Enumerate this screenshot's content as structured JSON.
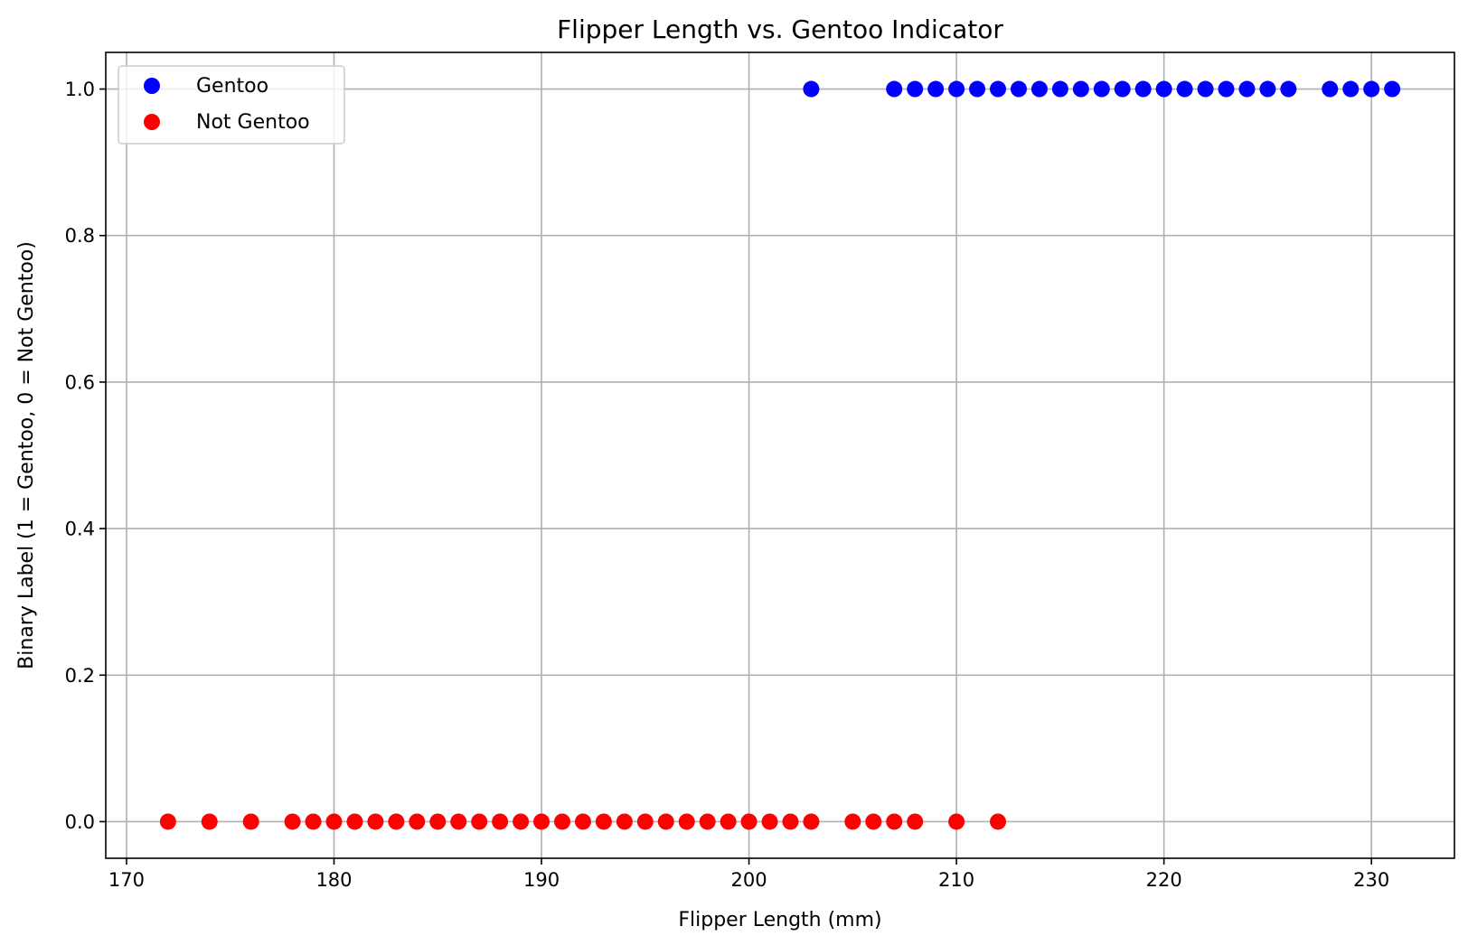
{
  "chart_data": {
    "type": "scatter",
    "title": "Flipper Length vs. Gentoo Indicator",
    "xlabel": "Flipper Length (mm)",
    "ylabel": "Binary Label (1 = Gentoo, 0 = Not Gentoo)",
    "xlim": [
      169,
      234
    ],
    "ylim": [
      -0.05,
      1.05
    ],
    "xticks": [
      170,
      180,
      190,
      200,
      210,
      220,
      230
    ],
    "yticks": [
      0.0,
      0.2,
      0.4,
      0.6,
      0.8,
      1.0
    ],
    "xtick_labels": [
      "170",
      "180",
      "190",
      "200",
      "210",
      "220",
      "230"
    ],
    "ytick_labels": [
      "0.0",
      "0.2",
      "0.4",
      "0.6",
      "0.8",
      "1.0"
    ],
    "grid": true,
    "legend_position": "top-left",
    "series": [
      {
        "name": "Gentoo",
        "color": "#0000ff",
        "y": 1.0,
        "x": [
          203,
          207,
          208,
          209,
          210,
          211,
          212,
          213,
          214,
          215,
          216,
          217,
          218,
          219,
          220,
          221,
          222,
          223,
          224,
          225,
          226,
          228,
          229,
          230,
          231
        ]
      },
      {
        "name": "Not Gentoo",
        "color": "#ff0000",
        "y": 0.0,
        "x": [
          172,
          174,
          176,
          178,
          179,
          180,
          181,
          182,
          183,
          184,
          185,
          186,
          187,
          188,
          189,
          190,
          191,
          192,
          193,
          194,
          195,
          196,
          197,
          198,
          199,
          200,
          201,
          202,
          203,
          205,
          206,
          207,
          208,
          210,
          212
        ]
      }
    ]
  }
}
